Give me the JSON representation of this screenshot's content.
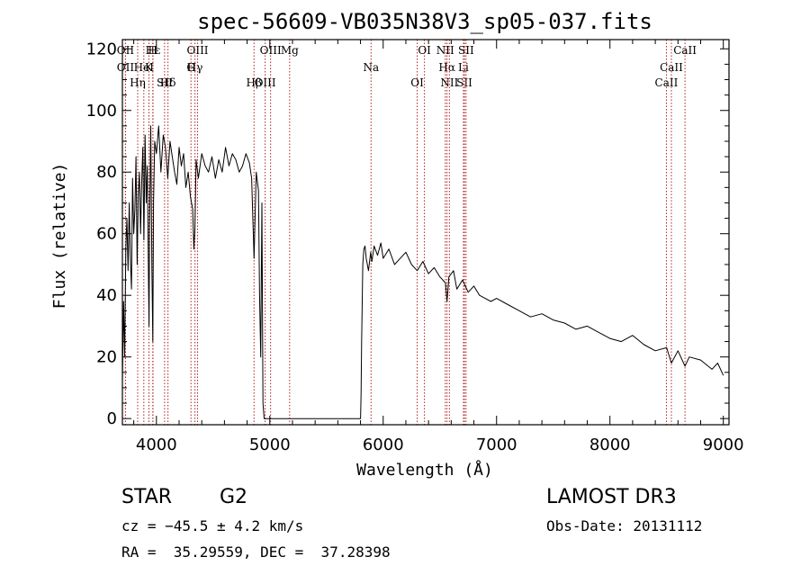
{
  "chart_data": {
    "type": "line",
    "title": "spec-56609-VB035N38V3_sp05-037.fits",
    "xlabel": "Wavelength (Å)",
    "ylabel": "Flux (relative)",
    "xlim": [
      3700,
      9050
    ],
    "ylim": [
      -2,
      123
    ],
    "xticks": [
      4000,
      5000,
      6000,
      7000,
      8000,
      9000
    ],
    "yticks": [
      0,
      20,
      40,
      60,
      80,
      100,
      120
    ],
    "series": [
      {
        "name": "spectrum",
        "x": [
          3700,
          3710,
          3720,
          3730,
          3740,
          3750,
          3760,
          3770,
          3780,
          3790,
          3800,
          3810,
          3820,
          3830,
          3840,
          3850,
          3860,
          3870,
          3880,
          3890,
          3900,
          3910,
          3920,
          3930,
          3935,
          3940,
          3950,
          3960,
          3968,
          3975,
          3985,
          4000,
          4020,
          4040,
          4060,
          4080,
          4100,
          4120,
          4140,
          4160,
          4180,
          4200,
          4220,
          4240,
          4260,
          4280,
          4300,
          4320,
          4330,
          4340,
          4350,
          4370,
          4400,
          4430,
          4460,
          4490,
          4520,
          4550,
          4580,
          4610,
          4640,
          4670,
          4700,
          4730,
          4760,
          4790,
          4820,
          4840,
          4861,
          4880,
          4900,
          4910,
          4920,
          4930,
          4940,
          4950,
          5800,
          5805,
          5810,
          5820,
          5830,
          5840,
          5850,
          5870,
          5890,
          5900,
          5920,
          5950,
          5980,
          6000,
          6050,
          6100,
          6150,
          6200,
          6250,
          6300,
          6350,
          6400,
          6450,
          6500,
          6550,
          6563,
          6580,
          6620,
          6650,
          6700,
          6750,
          6800,
          6850,
          6900,
          6950,
          7000,
          7100,
          7200,
          7300,
          7400,
          7500,
          7600,
          7700,
          7800,
          7900,
          8000,
          8100,
          8200,
          8300,
          8400,
          8500,
          8542,
          8600,
          8662,
          8700,
          8800,
          8900,
          8950,
          9000
        ],
        "values": [
          12,
          38,
          20,
          55,
          65,
          48,
          70,
          52,
          42,
          78,
          60,
          68,
          85,
          50,
          72,
          80,
          60,
          76,
          88,
          58,
          92,
          70,
          82,
          45,
          30,
          62,
          95,
          48,
          25,
          70,
          90,
          86,
          95,
          80,
          92,
          88,
          78,
          90,
          85,
          80,
          76,
          88,
          82,
          86,
          75,
          80,
          72,
          68,
          55,
          62,
          84,
          78,
          86,
          82,
          80,
          85,
          78,
          84,
          80,
          88,
          82,
          86,
          84,
          80,
          82,
          86,
          83,
          78,
          52,
          80,
          74,
          40,
          20,
          70,
          5,
          0,
          0,
          8,
          25,
          50,
          55,
          56,
          52,
          48,
          54,
          51,
          56,
          53,
          57,
          52,
          55,
          50,
          52,
          54,
          50,
          48,
          51,
          47,
          49,
          46,
          44,
          38,
          46,
          48,
          42,
          45,
          41,
          43,
          40,
          39,
          38,
          39,
          37,
          35,
          33,
          34,
          32,
          31,
          29,
          30,
          28,
          26,
          25,
          27,
          24,
          22,
          23,
          18,
          22,
          17,
          20,
          19,
          16,
          18,
          14
        ]
      }
    ],
    "emission_lines": [
      {
        "label": "Hε",
        "wavelength": 3970
      },
      {
        "label": "K",
        "wavelength": 3934
      },
      {
        "label": "Hδ",
        "wavelength": 4102
      },
      {
        "label": "OII",
        "wavelength": 3727
      },
      {
        "label": "HeI",
        "wavelength": 3889
      },
      {
        "label": "SII",
        "wavelength": 4072
      },
      {
        "label": "OIII",
        "wavelength": 4363
      },
      {
        "label": "Hγ",
        "wavelength": 4340
      },
      {
        "label": "OIII",
        "wavelength": 4959
      },
      {
        "label": "OIII",
        "wavelength": 5007
      },
      {
        "label": "OII",
        "wavelength": 3727
      },
      {
        "label": "Hη",
        "wavelength": 3835
      },
      {
        "label": "H",
        "wavelength": 3968
      },
      {
        "label": "G",
        "wavelength": 4305
      },
      {
        "label": "Hβ",
        "wavelength": 4861
      },
      {
        "label": "Mg",
        "wavelength": 5175
      },
      {
        "label": "Na",
        "wavelength": 5893
      },
      {
        "label": "OI",
        "wavelength": 6300
      },
      {
        "label": "OI",
        "wavelength": 6364
      },
      {
        "label": "Hα",
        "wavelength": 6563
      },
      {
        "label": "SII",
        "wavelength": 6717
      },
      {
        "label": "NII",
        "wavelength": 6548
      },
      {
        "label": "Li",
        "wavelength": 6708
      },
      {
        "label": "NII",
        "wavelength": 6584
      },
      {
        "label": "SII",
        "wavelength": 6731
      },
      {
        "label": "CaII",
        "wavelength": 8542
      },
      {
        "label": "CaII",
        "wavelength": 8498
      },
      {
        "label": "CaII",
        "wavelength": 8662
      }
    ]
  },
  "info": {
    "class": "STAR",
    "subclass": "G2",
    "survey": "LAMOST DR3",
    "cz": "cz = −45.5 ± 4.2 km/s",
    "obs_date": "Obs-Date: 20131112",
    "coords": "RA =  35.29559, DEC =  37.28398"
  },
  "colors": {
    "axis": "#000000",
    "spectrum": "#000000",
    "lines": "#b22222"
  }
}
